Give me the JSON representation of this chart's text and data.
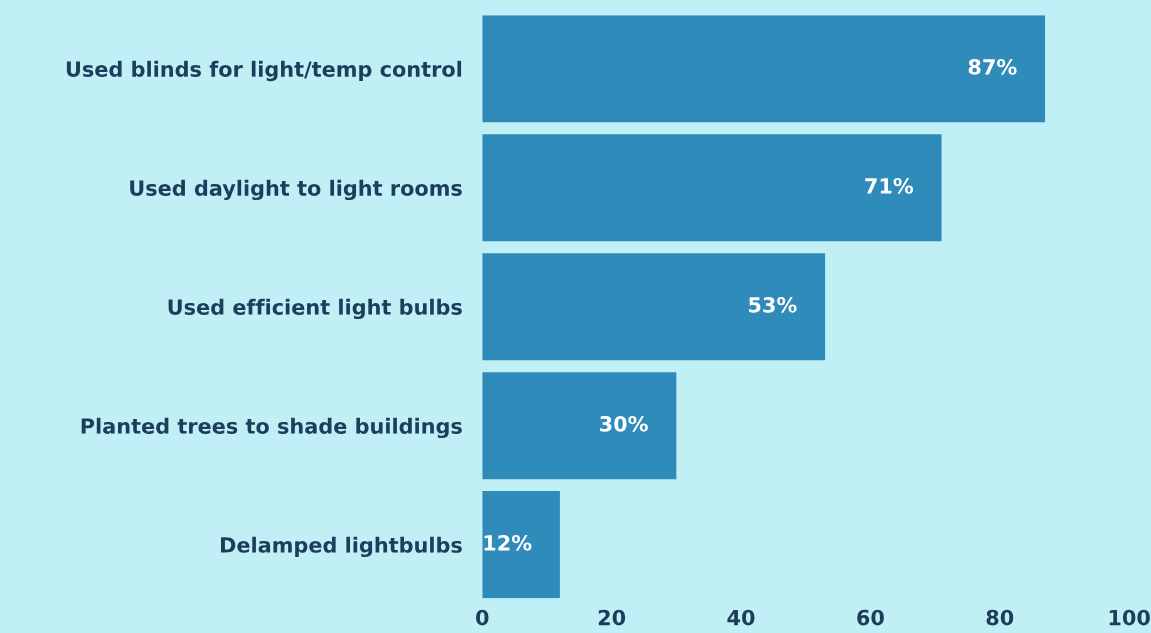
{
  "chart_data": {
    "type": "bar",
    "orientation": "horizontal",
    "categories": [
      "Used blinds for light/temp control",
      "Used daylight to light rooms",
      "Used efficient light bulbs",
      "Planted trees to shade buildings",
      "Delamped lightbulbs"
    ],
    "values": [
      87,
      71,
      53,
      30,
      12
    ],
    "value_labels": [
      "87%",
      "71%",
      "53%",
      "30%",
      "12%"
    ],
    "color": "#2e8bba",
    "xlim": [
      0,
      100
    ],
    "xticks": [
      0,
      20,
      40,
      60,
      80,
      100
    ],
    "grid": false,
    "legend": false
  }
}
